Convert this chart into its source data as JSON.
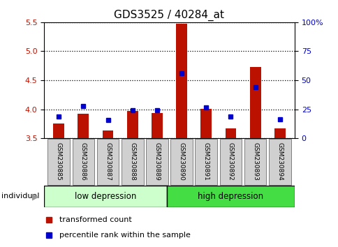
{
  "title": "GDS3525 / 40284_at",
  "samples": [
    "GSM230885",
    "GSM230886",
    "GSM230887",
    "GSM230888",
    "GSM230889",
    "GSM230890",
    "GSM230891",
    "GSM230892",
    "GSM230893",
    "GSM230894"
  ],
  "transformed_count": [
    3.75,
    3.92,
    3.63,
    3.97,
    3.93,
    5.48,
    4.01,
    3.67,
    4.73,
    3.67
  ],
  "percentile_rank": [
    3.88,
    4.05,
    3.82,
    3.98,
    3.98,
    4.62,
    4.03,
    3.88,
    4.38,
    3.83
  ],
  "ymin": 3.5,
  "ymax": 5.5,
  "yticks": [
    3.5,
    4.0,
    4.5,
    5.0,
    5.5
  ],
  "y2ticks_pct": [
    0,
    25,
    50,
    75,
    100
  ],
  "y2labels": [
    "0",
    "25",
    "50",
    "75",
    "100%"
  ],
  "bar_color": "#BB1100",
  "marker_color": "#0000CC",
  "bar_width": 0.45,
  "label_bg": "#d0d0d0",
  "group_low_color": "#ccffcc",
  "group_high_color": "#44dd44",
  "title_fontsize": 11,
  "tick_fontsize": 8,
  "label_fontsize": 8,
  "group_fontsize": 8.5,
  "legend_fontsize": 8
}
